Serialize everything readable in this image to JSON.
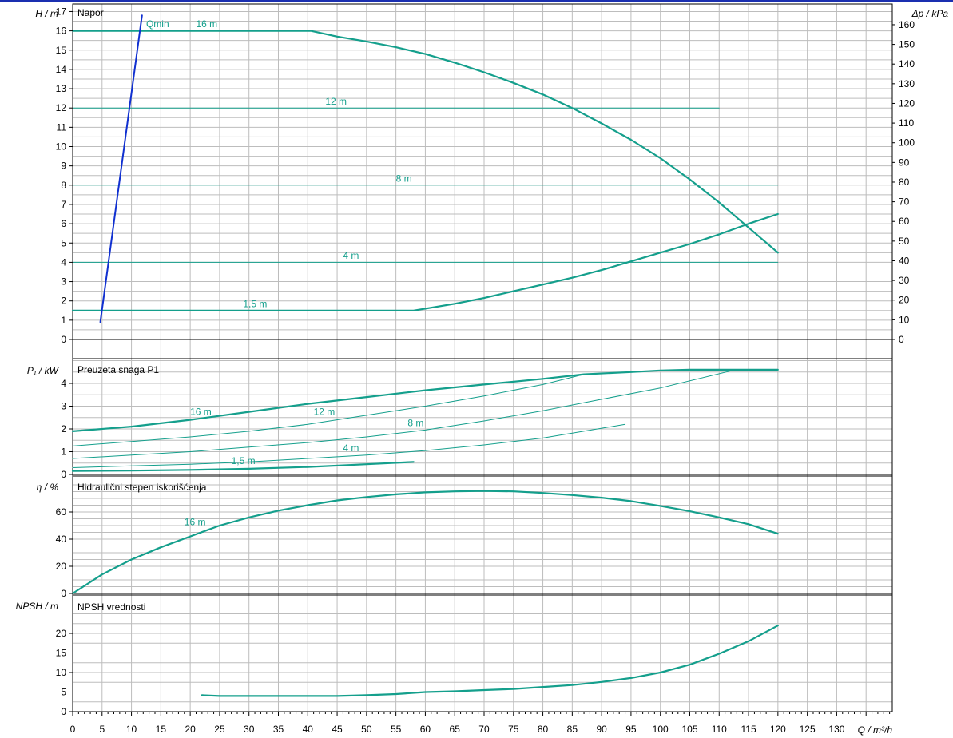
{
  "colors": {
    "curve": "#149f8c",
    "qmin": "#1030d0",
    "grid": "#bdbdbd",
    "axis": "#000000",
    "topbar": "#1a2fb0"
  },
  "axes": {
    "x_label": "Q / m³/h",
    "H_label": "H / m",
    "dp_label": "Δp / kPa",
    "P_label": "P₁ / kW",
    "eta_label": "η / %",
    "npsh_label": "NPSH / m"
  },
  "chart_data": [
    {
      "type": "line",
      "title": "Napor",
      "xlabel": "Q / m³/h",
      "ylabel": "H / m",
      "ylabel_right": "Δp / kPa",
      "xlim": [
        0,
        140
      ],
      "ylim": [
        0,
        17
      ],
      "ylim_right": [
        0,
        166.7
      ],
      "x_ticks": [
        0,
        5,
        10,
        15,
        20,
        25,
        30,
        35,
        40,
        45,
        50,
        55,
        60,
        65,
        70,
        75,
        80,
        85,
        90,
        95,
        100,
        105,
        110,
        115,
        120,
        125,
        130
      ],
      "y_ticks": [
        0,
        1,
        2,
        3,
        4,
        5,
        6,
        7,
        8,
        9,
        10,
        11,
        12,
        13,
        14,
        15,
        16,
        17
      ],
      "y_ticks_right": [
        0,
        10,
        20,
        30,
        40,
        50,
        60,
        70,
        80,
        90,
        100,
        110,
        120,
        130,
        140,
        150,
        160
      ],
      "grid": true,
      "series": [
        {
          "name": "16 m",
          "x": [
            0,
            40.5,
            45,
            50,
            55,
            60,
            65,
            70,
            75,
            80,
            85,
            90,
            95,
            100,
            105,
            110,
            115,
            120
          ],
          "y": [
            16,
            16,
            15.7,
            15.45,
            15.15,
            14.8,
            14.35,
            13.85,
            13.3,
            12.7,
            12.0,
            11.2,
            10.35,
            9.4,
            8.3,
            7.1,
            5.8,
            4.5
          ]
        },
        {
          "name": "12 m",
          "x": [
            0,
            110
          ],
          "y": [
            12,
            12
          ]
        },
        {
          "name": "8 m",
          "x": [
            0,
            120
          ],
          "y": [
            8,
            8
          ]
        },
        {
          "name": "4 m",
          "x": [
            0,
            120
          ],
          "y": [
            4,
            4
          ]
        },
        {
          "name": "1,5 m",
          "x": [
            0,
            58,
            60,
            65,
            70,
            75,
            80,
            85,
            90,
            95,
            100,
            105,
            110,
            115,
            120
          ],
          "y": [
            1.5,
            1.5,
            1.6,
            1.85,
            2.15,
            2.5,
            2.85,
            3.2,
            3.6,
            4.05,
            4.5,
            4.95,
            5.45,
            6.0,
            6.5
          ]
        },
        {
          "name": "Qmin",
          "x": [
            4.7,
            11.8
          ],
          "y": [
            0.9,
            16.8
          ]
        }
      ]
    },
    {
      "type": "line",
      "title": "Preuzeta snaga P1",
      "xlabel": "Q / m³/h",
      "ylabel": "P₁ / kW",
      "xlim": [
        0,
        140
      ],
      "ylim": [
        0,
        5
      ],
      "y_ticks": [
        0,
        1,
        2,
        3,
        4
      ],
      "grid": true,
      "series": [
        {
          "name": "16 m",
          "x": [
            0,
            10,
            20,
            30,
            40,
            50,
            60,
            70,
            80,
            87,
            95,
            100,
            105,
            112,
            120
          ],
          "y": [
            1.9,
            2.1,
            2.4,
            2.75,
            3.1,
            3.4,
            3.7,
            3.95,
            4.2,
            4.4,
            4.5,
            4.57,
            4.6,
            4.6,
            4.6
          ]
        },
        {
          "name": "12 m",
          "x": [
            0,
            10,
            20,
            30,
            40,
            50,
            60,
            70,
            80,
            87
          ],
          "y": [
            1.25,
            1.45,
            1.65,
            1.9,
            2.2,
            2.6,
            3.0,
            3.45,
            3.95,
            4.4
          ]
        },
        {
          "name": "8 m",
          "x": [
            0,
            10,
            20,
            30,
            40,
            50,
            60,
            70,
            80,
            90,
            100,
            112
          ],
          "y": [
            0.7,
            0.85,
            1.0,
            1.2,
            1.4,
            1.65,
            1.95,
            2.35,
            2.8,
            3.3,
            3.8,
            4.55
          ]
        },
        {
          "name": "4 m",
          "x": [
            0,
            10,
            20,
            30,
            40,
            50,
            60,
            70,
            80,
            94
          ],
          "y": [
            0.3,
            0.38,
            0.45,
            0.55,
            0.7,
            0.85,
            1.05,
            1.3,
            1.6,
            2.2
          ]
        },
        {
          "name": "1,5 m",
          "x": [
            0,
            10,
            20,
            30,
            40,
            50,
            58
          ],
          "y": [
            0.15,
            0.17,
            0.2,
            0.25,
            0.33,
            0.45,
            0.55
          ]
        }
      ]
    },
    {
      "type": "line",
      "title": "Hidraulični stepen iskorišćenja",
      "xlabel": "Q / m³/h",
      "ylabel": "η / %",
      "xlim": [
        0,
        140
      ],
      "ylim": [
        0,
        88
      ],
      "y_ticks": [
        0,
        20,
        40,
        60
      ],
      "grid": true,
      "series": [
        {
          "name": "16 m",
          "x": [
            0,
            5,
            10,
            15,
            20,
            25,
            30,
            35,
            40,
            45,
            50,
            55,
            60,
            65,
            70,
            75,
            80,
            85,
            90,
            95,
            100,
            105,
            110,
            115,
            120
          ],
          "y": [
            0,
            14,
            25,
            34,
            42,
            50,
            56,
            61,
            65,
            68.5,
            71,
            73,
            74.5,
            75.2,
            75.5,
            75.2,
            74,
            72.5,
            70.5,
            68,
            64.5,
            60.5,
            56,
            51,
            44
          ]
        }
      ]
    },
    {
      "type": "line",
      "title": "NPSH vrednosti",
      "xlabel": "Q / m³/h",
      "ylabel": "NPSH / m",
      "xlim": [
        0,
        140
      ],
      "ylim": [
        0,
        27
      ],
      "y_ticks": [
        0,
        5,
        10,
        15,
        20
      ],
      "grid": true,
      "series": [
        {
          "name": "",
          "x": [
            22,
            25,
            30,
            35,
            40,
            45,
            50,
            55,
            60,
            65,
            70,
            75,
            80,
            85,
            90,
            95,
            100,
            105,
            110,
            115,
            120
          ],
          "y": [
            4.2,
            4.0,
            4.0,
            4.0,
            4.0,
            4.0,
            4.2,
            4.5,
            5.0,
            5.2,
            5.5,
            5.8,
            6.3,
            6.8,
            7.6,
            8.6,
            10.0,
            12.0,
            14.8,
            18.0,
            22.0
          ]
        }
      ]
    }
  ],
  "curve_labels": {
    "head": [
      {
        "text": "Qmin",
        "x": 12.5,
        "y": 16.1
      },
      {
        "text": "16 m",
        "x": 21,
        "y": 16.1
      },
      {
        "text": "12 m",
        "x": 43,
        "y": 12.1
      },
      {
        "text": "8 m",
        "x": 55,
        "y": 8.1
      },
      {
        "text": "4 m",
        "x": 46,
        "y": 4.1
      },
      {
        "text": "1,5 m",
        "x": 29,
        "y": 1.6
      }
    ],
    "power": [
      {
        "text": "16 m",
        "x": 20,
        "y": 2.55
      },
      {
        "text": "12 m",
        "x": 41,
        "y": 2.55
      },
      {
        "text": "8 m",
        "x": 57,
        "y": 2.05
      },
      {
        "text": "4 m",
        "x": 46,
        "y": 0.95
      },
      {
        "text": "1,5 m",
        "x": 27,
        "y": 0.38
      }
    ],
    "eff": [
      {
        "text": "16 m",
        "x": 19,
        "y": 49
      }
    ]
  }
}
